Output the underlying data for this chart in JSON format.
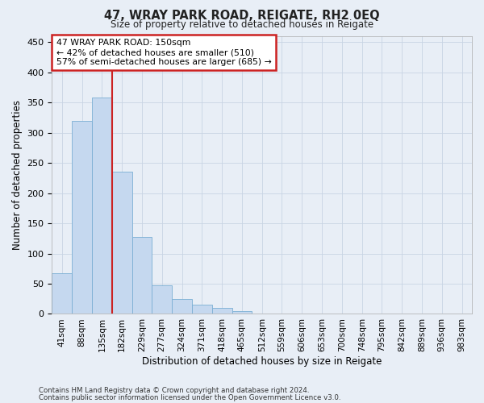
{
  "title": "47, WRAY PARK ROAD, REIGATE, RH2 0EQ",
  "subtitle": "Size of property relative to detached houses in Reigate",
  "xlabel": "Distribution of detached houses by size in Reigate",
  "ylabel": "Number of detached properties",
  "footnote1": "Contains HM Land Registry data © Crown copyright and database right 2024.",
  "footnote2": "Contains public sector information licensed under the Open Government Licence v3.0.",
  "bar_labels": [
    "41sqm",
    "88sqm",
    "135sqm",
    "182sqm",
    "229sqm",
    "277sqm",
    "324sqm",
    "371sqm",
    "418sqm",
    "465sqm",
    "512sqm",
    "559sqm",
    "606sqm",
    "653sqm",
    "700sqm",
    "748sqm",
    "795sqm",
    "842sqm",
    "889sqm",
    "936sqm",
    "983sqm"
  ],
  "bar_heights": [
    67,
    320,
    358,
    235,
    127,
    47,
    25,
    15,
    10,
    5,
    1,
    0,
    1,
    0,
    0,
    0,
    1,
    0,
    1,
    0,
    0
  ],
  "bar_color": "#c5d8ef",
  "bar_edge_color": "#7bafd4",
  "grid_color": "#c8d4e4",
  "background_color": "#e8eef6",
  "vline_x": 2.5,
  "vline_color": "#cc2222",
  "annotation_text": "47 WRAY PARK ROAD: 150sqm\n← 42% of detached houses are smaller (510)\n57% of semi-detached houses are larger (685) →",
  "annotation_box_color": "#cc2222",
  "ylim": [
    0,
    460
  ],
  "yticks": [
    0,
    50,
    100,
    150,
    200,
    250,
    300,
    350,
    400,
    450
  ]
}
